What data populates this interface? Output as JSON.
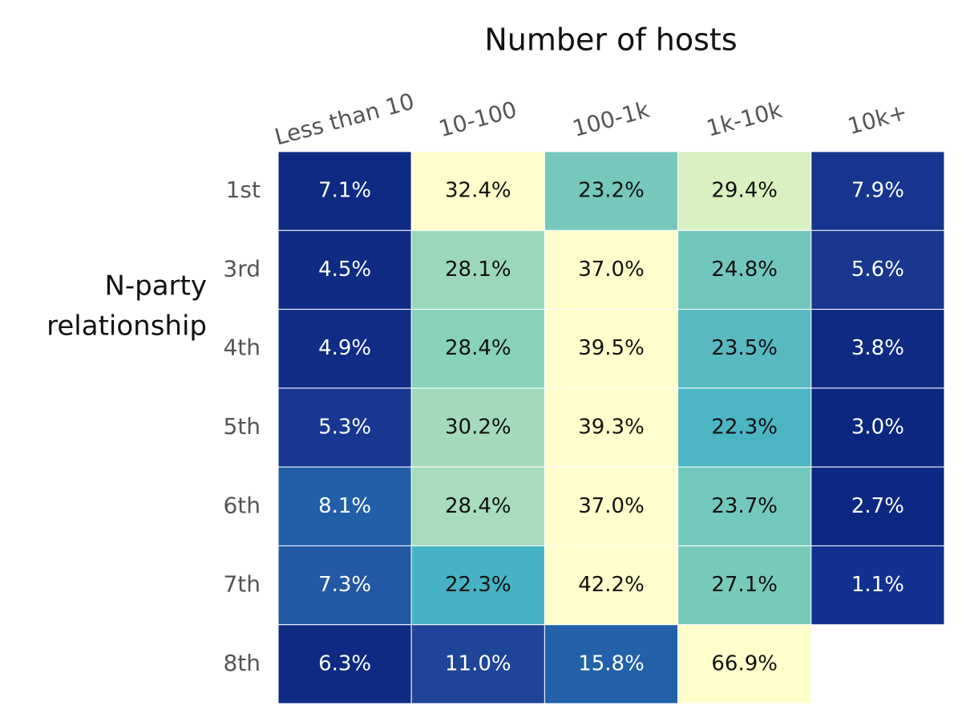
{
  "chart_data": {
    "type": "heatmap",
    "title": "Number of hosts",
    "ylabel": [
      "N-party",
      "relationship"
    ],
    "columns": [
      "Less than 10",
      "10-100",
      "100-1k",
      "1k-10k",
      "10k+"
    ],
    "rows": [
      "1st",
      "3rd",
      "4th",
      "5th",
      "6th",
      "7th",
      "8th"
    ],
    "values": [
      [
        7.1,
        32.4,
        23.2,
        29.4,
        7.9
      ],
      [
        4.5,
        28.1,
        37.0,
        24.8,
        5.6
      ],
      [
        4.9,
        28.4,
        39.5,
        23.5,
        3.8
      ],
      [
        5.3,
        30.2,
        39.3,
        22.3,
        3.0
      ],
      [
        8.1,
        28.4,
        37.0,
        23.7,
        2.7
      ],
      [
        7.3,
        22.3,
        42.2,
        27.1,
        1.1
      ],
      [
        6.3,
        11.0,
        15.8,
        66.9,
        null
      ]
    ],
    "value_labels": [
      [
        "7.1%",
        "32.4%",
        "23.2%",
        "29.4%",
        "7.9%"
      ],
      [
        "4.5%",
        "28.1%",
        "37.0%",
        "24.8%",
        "5.6%"
      ],
      [
        "4.9%",
        "28.4%",
        "39.5%",
        "23.5%",
        "3.8%"
      ],
      [
        "5.3%",
        "30.2%",
        "39.3%",
        "22.3%",
        "3.0%"
      ],
      [
        "8.1%",
        "28.4%",
        "37.0%",
        "23.7%",
        "2.7%"
      ],
      [
        "7.3%",
        "22.3%",
        "42.2%",
        "27.1%",
        "1.1%"
      ],
      [
        "6.3%",
        "11.0%",
        "15.8%",
        "66.9%",
        null
      ]
    ],
    "colors": [
      [
        "#0e2a83",
        "#fefecc",
        "#76c8bc",
        "#d9f0c0",
        "#15358f"
      ],
      [
        "#0f2b84",
        "#9bd8bb",
        "#fdfecc",
        "#72c7bd",
        "#19378f"
      ],
      [
        "#102c85",
        "#88d1ba",
        "#fffecc",
        "#58b9c1",
        "#0e2a83"
      ],
      [
        "#173791",
        "#a4dabc",
        "#fffecc",
        "#4bb5c4",
        "#0c2780"
      ],
      [
        "#2160a8",
        "#a7dcbd",
        "#fffecc",
        "#73c8bd",
        "#0d2882"
      ],
      [
        "#2358a5",
        "#45b3c4",
        "#fffecc",
        "#78cabb",
        "#123190"
      ],
      [
        "#0e2a83",
        "#1f4599",
        "#2361a9",
        "#ffffcc",
        null
      ]
    ]
  }
}
